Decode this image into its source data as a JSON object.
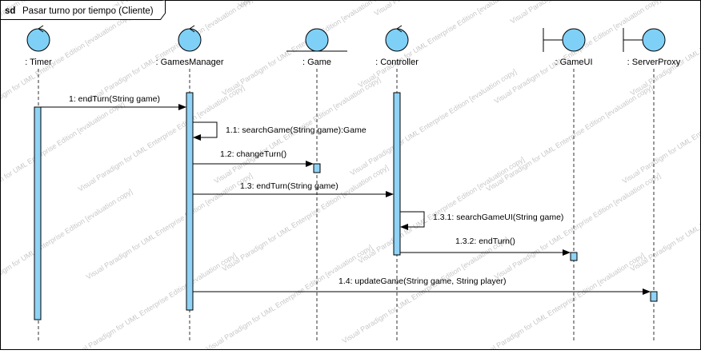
{
  "frame": {
    "keyword": "sd",
    "title": "Pasar turno por tiempo (Cliente)"
  },
  "lifelines": [
    {
      "id": "timer",
      "name": ": Timer",
      "kind": "control"
    },
    {
      "id": "gm",
      "name": ": GamesManager",
      "kind": "control"
    },
    {
      "id": "game",
      "name": ": Game",
      "kind": "entity"
    },
    {
      "id": "ctrl",
      "name": ": Controller",
      "kind": "control"
    },
    {
      "id": "gui",
      "name": ": GameUI",
      "kind": "boundary"
    },
    {
      "id": "sp",
      "name": ": ServerProxy",
      "kind": "boundary"
    }
  ],
  "messages": [
    {
      "id": "m1",
      "label": "1: endTurn(String game)",
      "from": "timer",
      "to": "gm"
    },
    {
      "id": "m11",
      "label": "1.1: searchGame(String game):Game",
      "from": "gm",
      "to": "gm"
    },
    {
      "id": "m12",
      "label": "1.2: changeTurn()",
      "from": "gm",
      "to": "game"
    },
    {
      "id": "m13",
      "label": "1.3: endTurn(String game)",
      "from": "gm",
      "to": "ctrl"
    },
    {
      "id": "m131",
      "label": "1.3.1: searchGameUI(String game)",
      "from": "ctrl",
      "to": "ctrl"
    },
    {
      "id": "m132",
      "label": "1.3.2: endTurn()",
      "from": "ctrl",
      "to": "gui"
    },
    {
      "id": "m14",
      "label": "1.4: updateGame(String game, String player)",
      "from": "gm",
      "to": "sp"
    }
  ],
  "watermark": "Visual Paradigm for UML Enterprise Edition [evaluation copy]",
  "colors": {
    "activation_fill": "#8fd3f6",
    "actor_fill": "#7fd0f7",
    "line": "#000000",
    "lifeline_dash": "#333333",
    "watermark": "#9a9a9a"
  }
}
